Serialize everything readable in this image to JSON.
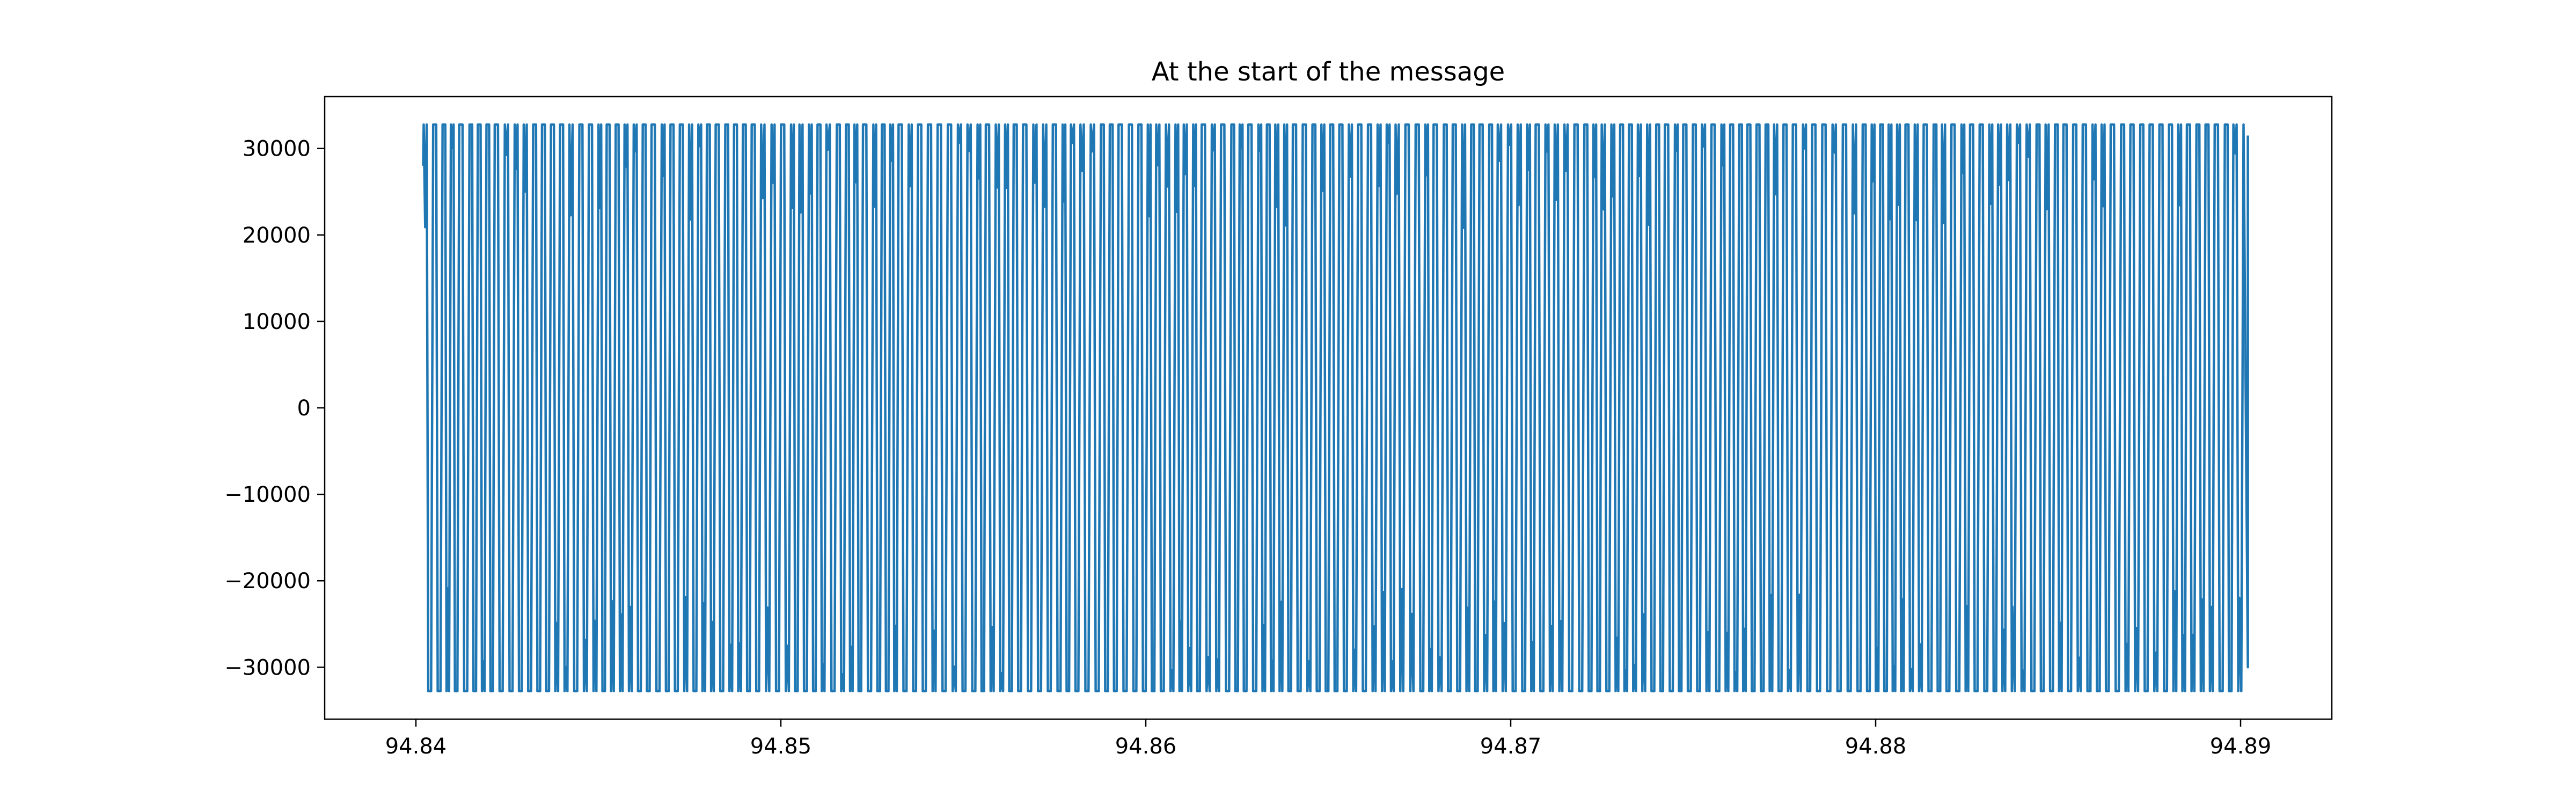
{
  "chart_data": {
    "type": "line",
    "title": "At the start of the message",
    "xlabel": "",
    "ylabel": "",
    "xlim": [
      94.8375,
      94.8925
    ],
    "ylim": [
      -36000,
      36000
    ],
    "x_start": 94.8402,
    "x_end": 94.8902,
    "y_saturation": [
      -32768,
      32767
    ],
    "xticks": [
      94.84,
      94.85,
      94.86,
      94.87,
      94.88,
      94.89
    ],
    "xtick_labels": [
      "94.84",
      "94.85",
      "94.86",
      "94.87",
      "94.88",
      "94.89"
    ],
    "yticks": [
      30000,
      20000,
      10000,
      0,
      -10000,
      -20000,
      -30000
    ],
    "ytick_labels": [
      "30000",
      "20000",
      "10000",
      "0",
      "−10000",
      "−20000",
      "−30000"
    ],
    "grid": false,
    "legend": false,
    "series_color": "#1f77b4"
  }
}
